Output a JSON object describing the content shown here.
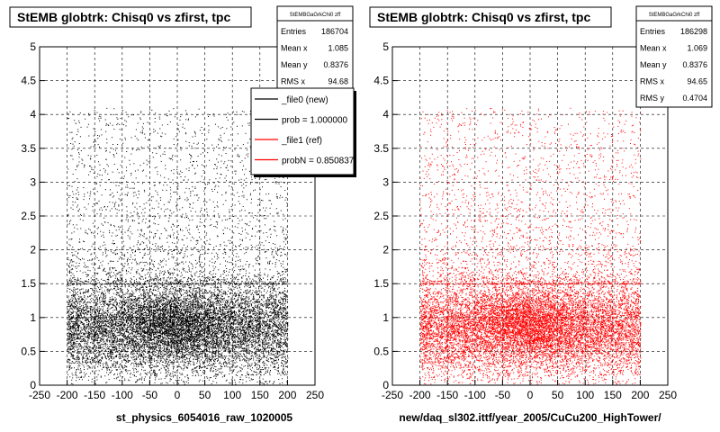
{
  "colors": {
    "left_points": "#000000",
    "right_points": "#ff0000",
    "frame": "#000000",
    "grid": "#000000",
    "background": "#ffffff"
  },
  "chart_data": [
    {
      "type": "scatter",
      "title": "StEMB globtrk: Chisq0 vs zfirst, tpc",
      "xlabel": "st_physics_6054016_raw_1020005",
      "ylabel": "",
      "xlim": [
        -250,
        250
      ],
      "ylim": [
        0,
        5
      ],
      "x_ticks": [
        "-250",
        "-200",
        "-150",
        "-100",
        "-50",
        "0",
        "50",
        "100",
        "150",
        "200",
        "250"
      ],
      "y_ticks": [
        "0",
        "0.5",
        "1",
        "1.5",
        "2",
        "2.5",
        "3",
        "3.5",
        "4",
        "4.5",
        "5"
      ],
      "grid": true,
      "point_color": "#000000",
      "series": [
        {
          "x_range": [
            -200,
            200
          ],
          "y_dense_max": 1.5,
          "y_sparse_max": 4.1
        }
      ],
      "stats": {
        "name": "StEMBGaGrkChi0 zff",
        "rows": [
          {
            "label": "Entries",
            "value": "186704"
          },
          {
            "label": "Mean x",
            "value": "1.085"
          },
          {
            "label": "Mean y",
            "value": "0.8376"
          },
          {
            "label": "RMS x",
            "value": "94.68"
          }
        ]
      },
      "legend": {
        "position": "top-right",
        "entries": [
          {
            "label": "_file0 (new)",
            "color": "#000000"
          },
          {
            "label": "prob = 1.000000",
            "color": "#000000"
          },
          {
            "label": "_file1 (ref)",
            "color": "#ff0000"
          },
          {
            "label": "probN = 0.850837",
            "color": "#ff0000"
          }
        ]
      }
    },
    {
      "type": "scatter",
      "title": "StEMB globtrk: Chisq0 vs zfirst, tpc",
      "xlabel": "new/daq_sl302.ittf/year_2005/CuCu200_HighTower/",
      "ylabel": "",
      "xlim": [
        -250,
        250
      ],
      "ylim": [
        0,
        5
      ],
      "x_ticks": [
        "-250",
        "-200",
        "-150",
        "-100",
        "-50",
        "0",
        "50",
        "100",
        "150",
        "200",
        "250"
      ],
      "y_ticks": [
        "0",
        "0.5",
        "1",
        "1.5",
        "2",
        "2.5",
        "3",
        "3.5",
        "4",
        "4.5",
        "5"
      ],
      "grid": true,
      "point_color": "#ff0000",
      "series": [
        {
          "x_range": [
            -200,
            200
          ],
          "y_dense_max": 1.5,
          "y_sparse_max": 4.1
        }
      ],
      "stats": {
        "name": "StEMBGaGrkChi0 zff",
        "rows": [
          {
            "label": "Entries",
            "value": "186298"
          },
          {
            "label": "Mean x",
            "value": "1.069"
          },
          {
            "label": "Mean y",
            "value": "0.8376"
          },
          {
            "label": "RMS x",
            "value": "94.65"
          },
          {
            "label": "RMS y",
            "value": "0.4704"
          }
        ]
      }
    }
  ]
}
